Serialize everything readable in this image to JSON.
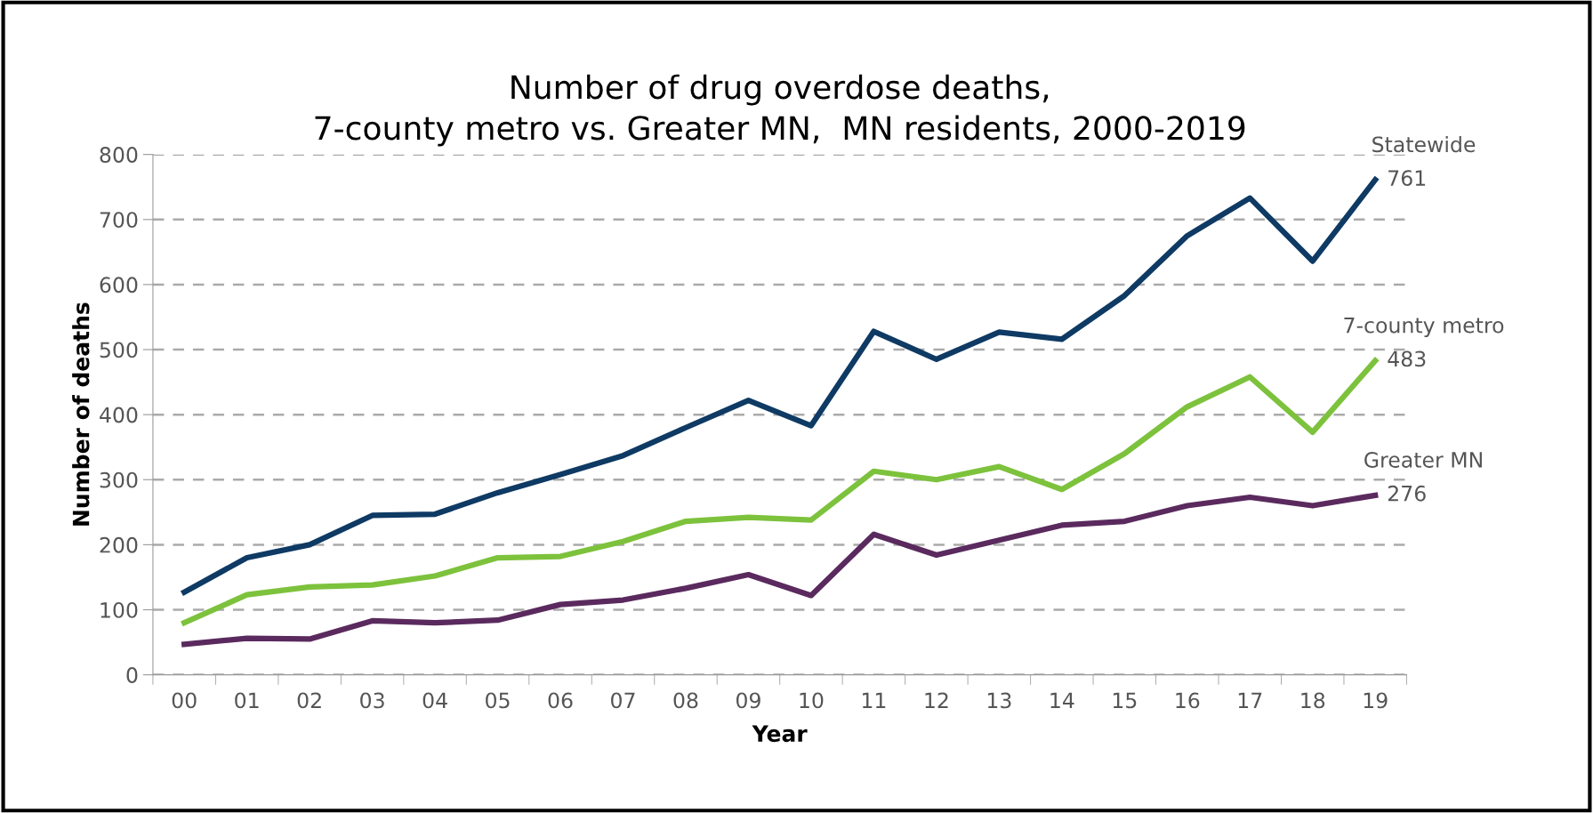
{
  "chart_data": {
    "type": "line",
    "title": "Number of drug overdose deaths,\n7-county metro vs. Greater MN,  MN residents, 2000-2019",
    "xlabel": "Year",
    "ylabel": "Number of deaths",
    "categories": [
      "00",
      "01",
      "02",
      "03",
      "04",
      "05",
      "06",
      "07",
      "08",
      "09",
      "10",
      "11",
      "12",
      "13",
      "14",
      "15",
      "16",
      "17",
      "18",
      "19"
    ],
    "series": [
      {
        "name": "Statewide",
        "color": "#0e3a64",
        "values": [
          127,
          180,
          200,
          245,
          247,
          280,
          308,
          337,
          380,
          422,
          383,
          528,
          485,
          527,
          516,
          583,
          675,
          733,
          636,
          761
        ],
        "value_labels": [
          null,
          null,
          null,
          null,
          null,
          null,
          null,
          null,
          null,
          null,
          null,
          null,
          null,
          null,
          null,
          null,
          null,
          null,
          null,
          "761"
        ]
      },
      {
        "name": "7-county metro",
        "color": "#7dc23c",
        "values": [
          80,
          123,
          135,
          138,
          152,
          180,
          182,
          205,
          236,
          242,
          238,
          313,
          300,
          320,
          285,
          340,
          412,
          458,
          373,
          483
        ],
        "value_labels": [
          null,
          null,
          null,
          null,
          null,
          null,
          null,
          null,
          null,
          null,
          null,
          null,
          null,
          null,
          null,
          null,
          null,
          null,
          null,
          "483"
        ]
      },
      {
        "name": "Greater MN",
        "color": "#5a2a5e",
        "values": [
          47,
          56,
          55,
          83,
          80,
          84,
          108,
          115,
          133,
          154,
          122,
          216,
          184,
          207,
          230,
          236,
          260,
          273,
          260,
          276
        ],
        "value_labels": [
          null,
          null,
          null,
          null,
          null,
          null,
          null,
          null,
          null,
          null,
          null,
          null,
          null,
          null,
          null,
          null,
          null,
          null,
          null,
          "276"
        ]
      }
    ],
    "ylim": [
      0,
      800
    ],
    "yticks": [
      0,
      100,
      200,
      300,
      400,
      500,
      600,
      700,
      800
    ],
    "grid": "y",
    "legend": false,
    "marker": "none",
    "line_style": "solid"
  }
}
